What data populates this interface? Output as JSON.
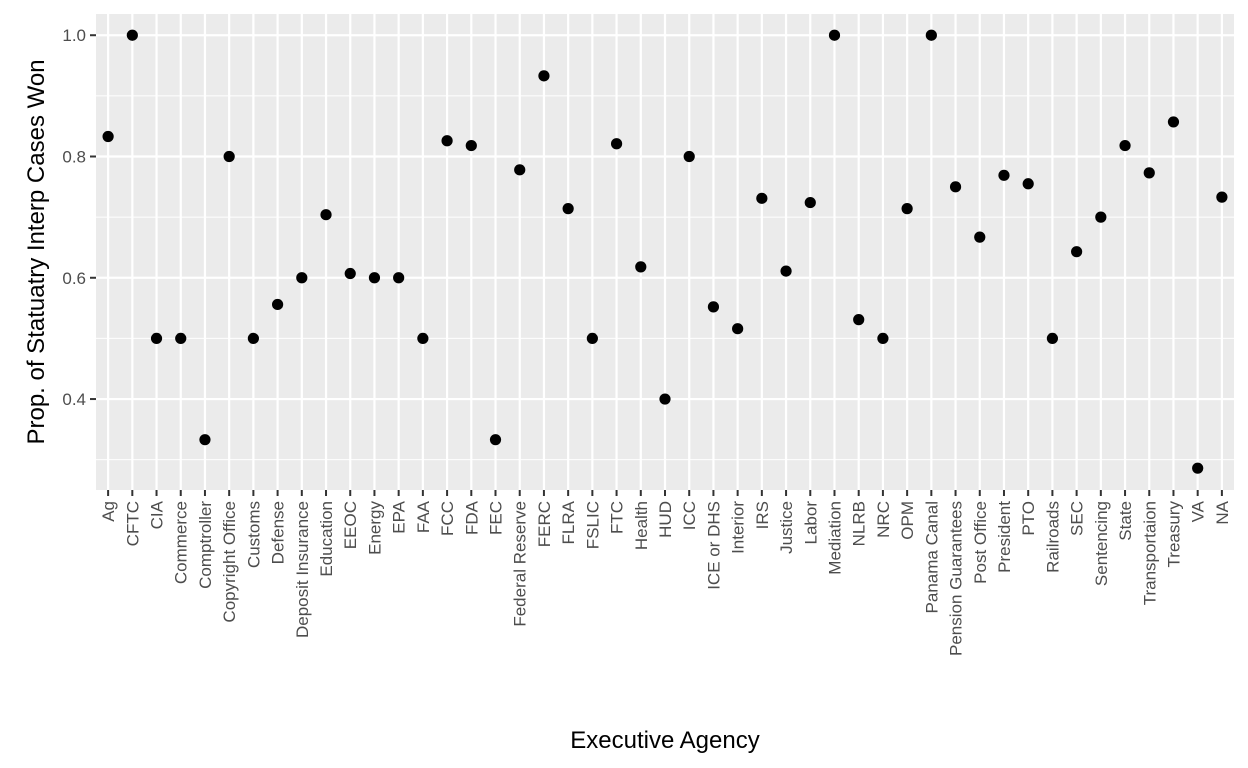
{
  "chart_data": {
    "type": "scatter",
    "xlabel": "Executive Agency",
    "ylabel": "Prop. of Statuatry Interp Cases Won",
    "ylim": [
      0.25,
      1.035
    ],
    "yticks": [
      0.4,
      0.6,
      0.8,
      1.0
    ],
    "ytick_labels": [
      "0.4",
      "0.6",
      "0.8",
      "1.0"
    ],
    "grid": true,
    "legend": "none",
    "colors": {
      "panel": "#ebebeb",
      "grid": "#ffffff",
      "point": "#000000",
      "tick": "#333333"
    },
    "categories": [
      "Ag",
      "CFTC",
      "CIA",
      "Commerce",
      "Comptroller",
      "Copyright Office",
      "Customs",
      "Defense",
      "Deposit Insurance",
      "Education",
      "EEOC",
      "Energy",
      "EPA",
      "FAA",
      "FCC",
      "FDA",
      "FEC",
      "Federal Reserve",
      "FERC",
      "FLRA",
      "FSLIC",
      "FTC",
      "Health",
      "HUD",
      "ICC",
      "ICE or DHS",
      "Interior",
      "IRS",
      "Justice",
      "Labor",
      "Mediation",
      "NLRB",
      "NRC",
      "OPM",
      "Panama Canal",
      "Pension Guarantees",
      "Post Office",
      "President",
      "PTO",
      "Railroads",
      "SEC",
      "Sentencing",
      "State",
      "Transportaion",
      "Treasury",
      "VA",
      "NA"
    ],
    "values": [
      0.833,
      1.0,
      0.5,
      0.5,
      0.333,
      0.8,
      0.5,
      0.556,
      0.6,
      0.704,
      0.607,
      0.6,
      0.6,
      0.5,
      0.826,
      0.818,
      0.333,
      0.778,
      0.933,
      0.714,
      0.5,
      0.821,
      0.618,
      0.4,
      0.8,
      0.552,
      0.516,
      0.731,
      0.611,
      0.724,
      1.0,
      0.531,
      0.5,
      0.714,
      1.0,
      0.75,
      0.667,
      0.769,
      0.755,
      0.5,
      0.643,
      0.7,
      0.818,
      0.773,
      0.857,
      0.286,
      0.733
    ]
  }
}
